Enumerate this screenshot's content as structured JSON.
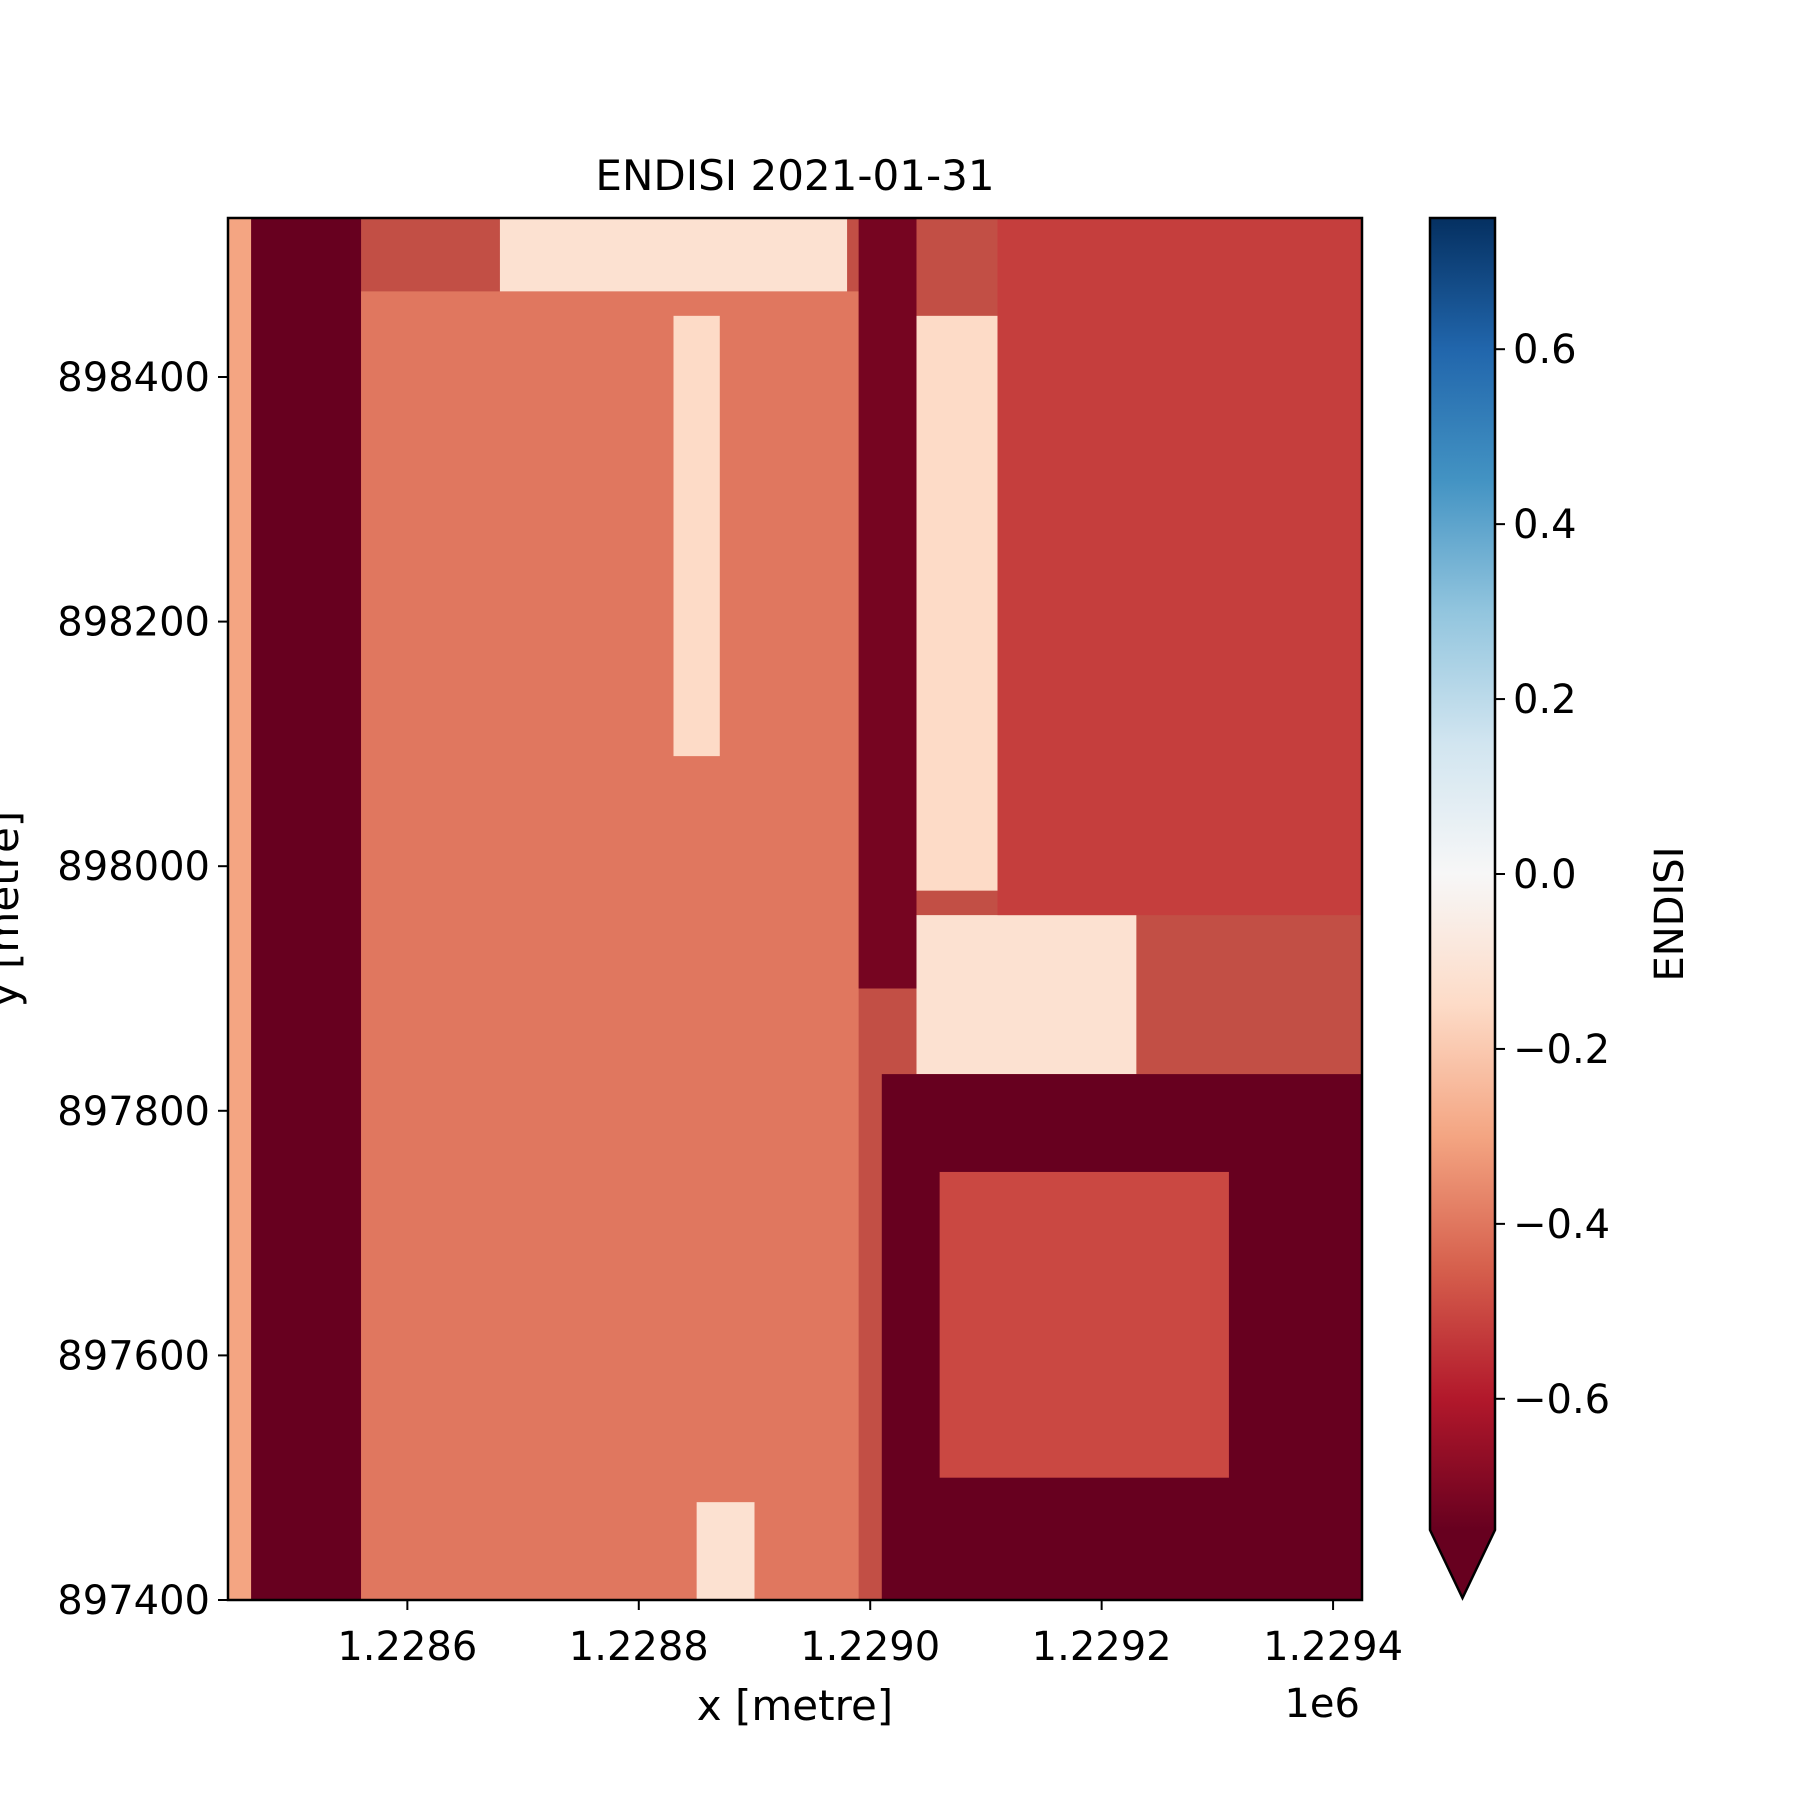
{
  "chart_data": {
    "type": "heatmap",
    "title": "ENDISI 2021-01-31",
    "xlabel": "x [metre]",
    "ylabel": "y [metre]",
    "x_offset_label": "1e6",
    "xlim": [
      1228445,
      1229425
    ],
    "ylim": [
      897400,
      898530
    ],
    "x_ticks": [
      1228600,
      1228800,
      1229000,
      1229200,
      1229400
    ],
    "x_tick_labels": [
      "1.2286",
      "1.2288",
      "1.2290",
      "1.2292",
      "1.2294"
    ],
    "y_ticks": [
      897400,
      897600,
      897800,
      898000,
      898200,
      898400
    ],
    "y_tick_labels": [
      "897400",
      "897600",
      "897800",
      "898000",
      "898200",
      "898400"
    ],
    "pixel_size_m": 10,
    "colorbar": {
      "label": "ENDISI",
      "colormap": "RdBu",
      "vmin": -0.75,
      "vmax": 0.75,
      "extend": "min",
      "ticks": [
        -0.6,
        -0.4,
        -0.2,
        0.0,
        0.2,
        0.4,
        0.6
      ],
      "tick_labels": [
        "−0.6",
        "−0.4",
        "−0.2",
        "0.0",
        "0.2",
        "0.4",
        "0.6"
      ]
    },
    "regions": [
      {
        "name": "left strip",
        "x": [
          1228445,
          1228465
        ],
        "y": [
          897400,
          898530
        ],
        "value": -0.3
      },
      {
        "name": "left dark band",
        "x": [
          1228465,
          1228560
        ],
        "y": [
          897400,
          898530
        ],
        "value": -0.78
      },
      {
        "name": "west field",
        "x": [
          1228560,
          1228990
        ],
        "y": [
          897400,
          898470
        ],
        "value": -0.4
      },
      {
        "name": "north west bright",
        "x": [
          1228680,
          1228980
        ],
        "y": [
          898470,
          898530
        ],
        "value": -0.12
      },
      {
        "name": "central strip",
        "x": [
          1228830,
          1228870
        ],
        "y": [
          898090,
          898450
        ],
        "value": -0.15
      },
      {
        "name": "south strip",
        "x": [
          1228850,
          1228900
        ],
        "y": [
          897400,
          897480
        ],
        "value": -0.12
      },
      {
        "name": "central dark band",
        "x": [
          1228990,
          1229040
        ],
        "y": [
          897900,
          898530
        ],
        "value": -0.72
      },
      {
        "name": "east bright band",
        "x": [
          1229040,
          1229110
        ],
        "y": [
          897980,
          898450
        ],
        "value": -0.15
      },
      {
        "name": "east bright block",
        "x": [
          1229040,
          1229230
        ],
        "y": [
          897830,
          897960
        ],
        "value": -0.12
      },
      {
        "name": "east field",
        "x": [
          1229110,
          1229425
        ],
        "y": [
          897960,
          898530
        ],
        "value": -0.52
      },
      {
        "name": "south east dark",
        "x": [
          1229010,
          1229425
        ],
        "y": [
          897400,
          897830
        ],
        "value": -0.78
      },
      {
        "name": "south east mixed",
        "x": [
          1229060,
          1229310
        ],
        "y": [
          897500,
          897750
        ],
        "value": -0.5
      }
    ]
  }
}
